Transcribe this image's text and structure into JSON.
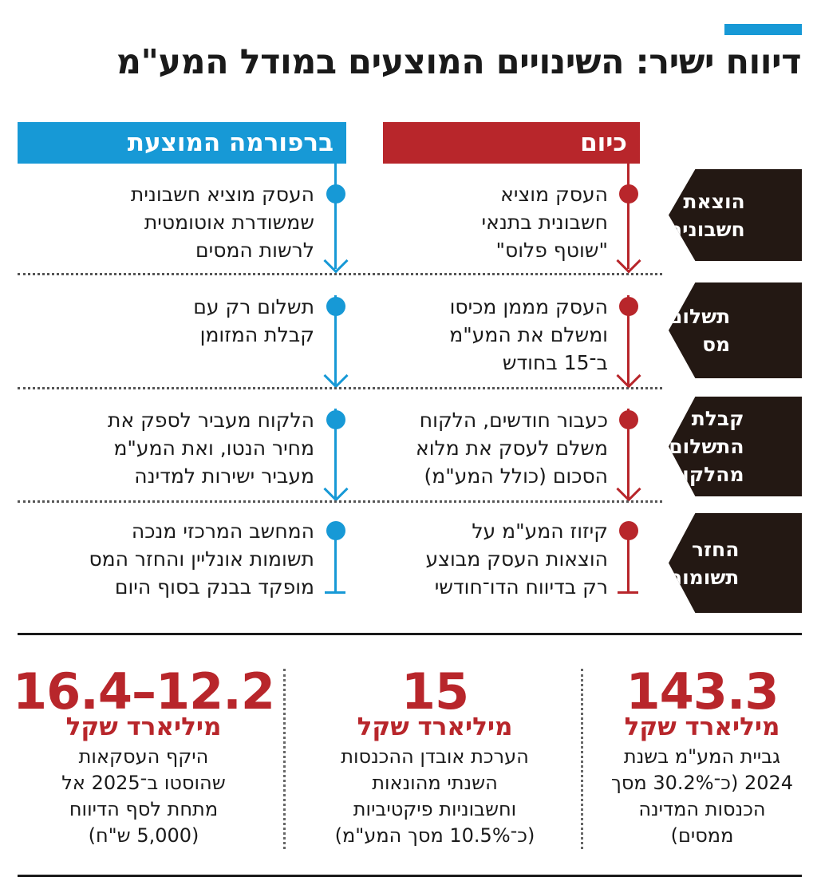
{
  "title": "דיווח ישיר: השינויים המוצעים במודל המע\"מ",
  "columns": {
    "today": "כיום",
    "reform": "ברפורמה המוצעת"
  },
  "rows": [
    {
      "label": "הוצאת\nחשבונית",
      "today": [
        "העסק מוציא",
        "חשבונית בתנאי",
        "\"שוטף פלוס\""
      ],
      "reform": [
        "העסק מוציא חשבונית",
        "שמשודרת אוטומטית",
        "לרשות המסים"
      ]
    },
    {
      "label": "תשלום\nמס",
      "today": [
        "העסק מממן מכיסו",
        "ומשלם את המע\"מ",
        "ב־15 בחודש"
      ],
      "reform": [
        "תשלום רק עם",
        "קבלת המזומן"
      ]
    },
    {
      "label": "קבלת\nהתשלום\nמהלקוח",
      "today": [
        "כעבור חודשים, הלקוח",
        "משלם לעסק את מלוא",
        "הסכום (כולל המע\"מ)"
      ],
      "reform": [
        "הלקוח מעביר לספק את",
        "מחיר הנטו, ואת המע\"מ",
        "מעביר ישירות למדינה"
      ]
    },
    {
      "label": "החזר\nתשומות",
      "today": [
        "קיזוז המע\"מ על",
        "הוצאות העסק מבוצע",
        "רק בדיווח הדו־חודשי"
      ],
      "reform": [
        "המחשב המרכזי מנכה",
        "תשומות אונליין והחזר המס",
        "מופקד בבנק בסוף היום"
      ]
    }
  ],
  "stats": [
    {
      "value": "143.3",
      "unit": "מיליארד שקל",
      "desc": [
        "גביית המע\"מ בשנת",
        "2024 (כ־30.2% מסך",
        "הכנסות המדינה",
        "ממסים)"
      ]
    },
    {
      "value": "15",
      "unit": "מיליארד שקל",
      "desc": [
        "הערכת אובדן ההכנסות",
        "השנתי מהונאות",
        "וחשבוניות פיקטיביות",
        "(כ־10.5% מסך המע\"מ)"
      ]
    },
    {
      "value": "16.4–12.2",
      "unit": "מיליארד שקל",
      "desc": [
        "היקף העסקאות",
        "שהוסטו ב־2025 אל",
        "מתחת לסף הדיווח",
        "(5,000 ש\"ח)"
      ]
    }
  ],
  "colors": {
    "today": "#b8262b",
    "reform": "#1799d6",
    "label_bg": "#231813"
  }
}
